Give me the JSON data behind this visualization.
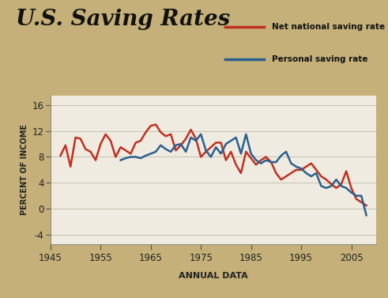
{
  "title": "U.S. Saving Rates",
  "xlabel": "ANNUAL DATA",
  "ylabel": "PERCENT OF INCOME",
  "background_color": "#c4b078",
  "plot_bg_color": "#f0ebe0",
  "legend_labels": [
    "Net national saving rate",
    "Personal saving rate"
  ],
  "legend_colors": [
    "#c03020",
    "#2a6090"
  ],
  "yticks": [
    -4,
    0,
    4,
    8,
    12,
    16
  ],
  "xticks": [
    1945,
    1955,
    1965,
    1975,
    1985,
    1995,
    2005
  ],
  "xlim": [
    1945,
    2010
  ],
  "ylim": [
    -5.5,
    17.5
  ],
  "net_national": {
    "years": [
      1947,
      1948,
      1949,
      1950,
      1951,
      1952,
      1953,
      1954,
      1955,
      1956,
      1957,
      1958,
      1959,
      1960,
      1961,
      1962,
      1963,
      1964,
      1965,
      1966,
      1967,
      1968,
      1969,
      1970,
      1971,
      1972,
      1973,
      1974,
      1975,
      1976,
      1977,
      1978,
      1979,
      1980,
      1981,
      1982,
      1983,
      1984,
      1985,
      1986,
      1987,
      1988,
      1989,
      1990,
      1991,
      1992,
      1993,
      1994,
      1995,
      1996,
      1997,
      1998,
      1999,
      2000,
      2001,
      2002,
      2003,
      2004,
      2005,
      2006,
      2007,
      2008
    ],
    "values": [
      8.2,
      9.8,
      6.5,
      11.0,
      10.8,
      9.2,
      8.8,
      7.5,
      10.0,
      11.5,
      10.5,
      8.0,
      9.5,
      9.0,
      8.5,
      10.2,
      10.5,
      11.8,
      12.8,
      13.0,
      11.8,
      11.2,
      11.5,
      9.0,
      9.8,
      10.8,
      12.2,
      10.8,
      8.0,
      8.8,
      9.5,
      10.2,
      10.2,
      7.5,
      8.8,
      6.8,
      5.5,
      8.8,
      7.8,
      6.8,
      7.5,
      8.0,
      7.2,
      5.5,
      4.5,
      5.0,
      5.5,
      6.0,
      6.0,
      6.5,
      7.0,
      6.0,
      5.0,
      4.5,
      3.8,
      3.2,
      3.8,
      5.8,
      3.2,
      1.5,
      1.0,
      0.5
    ]
  },
  "personal": {
    "years": [
      1959,
      1960,
      1961,
      1962,
      1963,
      1964,
      1965,
      1966,
      1967,
      1968,
      1969,
      1970,
      1971,
      1972,
      1973,
      1974,
      1975,
      1976,
      1977,
      1978,
      1979,
      1980,
      1981,
      1982,
      1983,
      1984,
      1985,
      1986,
      1987,
      1988,
      1989,
      1990,
      1991,
      1992,
      1993,
      1994,
      1995,
      1996,
      1997,
      1998,
      1999,
      2000,
      2001,
      2002,
      2003,
      2004,
      2005,
      2006,
      2007,
      2008
    ],
    "values": [
      7.5,
      7.8,
      8.0,
      8.0,
      7.8,
      8.2,
      8.5,
      8.8,
      9.8,
      9.2,
      8.8,
      9.8,
      10.0,
      8.8,
      11.0,
      10.5,
      11.5,
      9.0,
      8.0,
      9.5,
      8.5,
      10.0,
      10.5,
      11.0,
      8.5,
      11.5,
      8.5,
      7.5,
      7.0,
      7.5,
      7.2,
      7.2,
      8.2,
      8.8,
      7.0,
      6.5,
      6.2,
      5.5,
      5.0,
      5.5,
      3.5,
      3.2,
      3.5,
      4.5,
      3.5,
      3.2,
      2.5,
      2.0,
      2.0,
      -1.0
    ]
  }
}
